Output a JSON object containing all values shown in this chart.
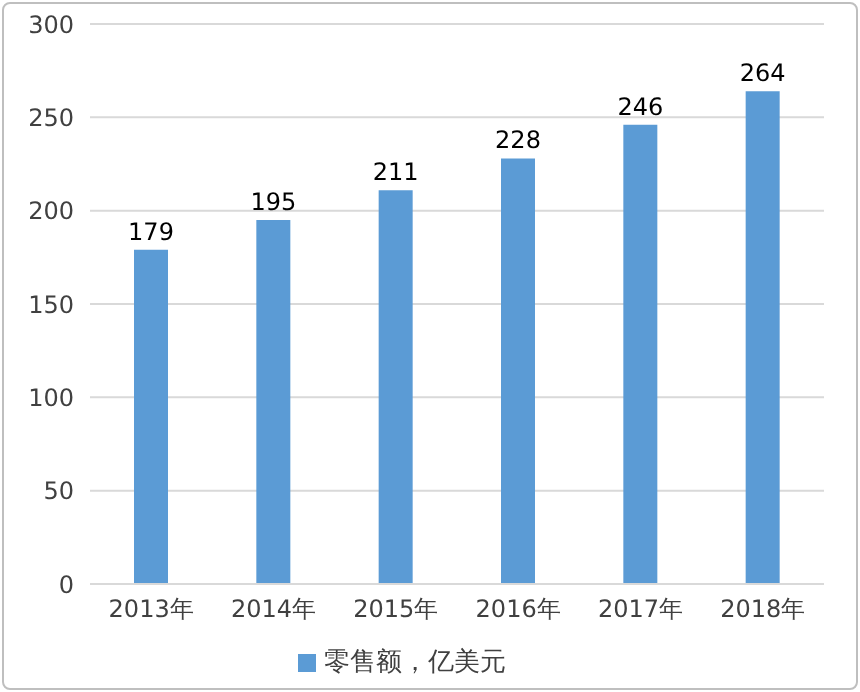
{
  "chart_data": {
    "type": "bar",
    "categories": [
      "2013年",
      "2014年",
      "2015年",
      "2016年",
      "2017年",
      "2018年"
    ],
    "series": [
      {
        "name": "零售额，亿美元",
        "color": "#5b9bd5",
        "values": [
          179,
          195,
          211,
          228,
          246,
          264
        ]
      }
    ],
    "ylim": [
      0,
      300
    ],
    "yticks": [
      0,
      50,
      100,
      150,
      200,
      250,
      300
    ],
    "grid": "y",
    "legend": "bottom",
    "data_labels": true
  }
}
